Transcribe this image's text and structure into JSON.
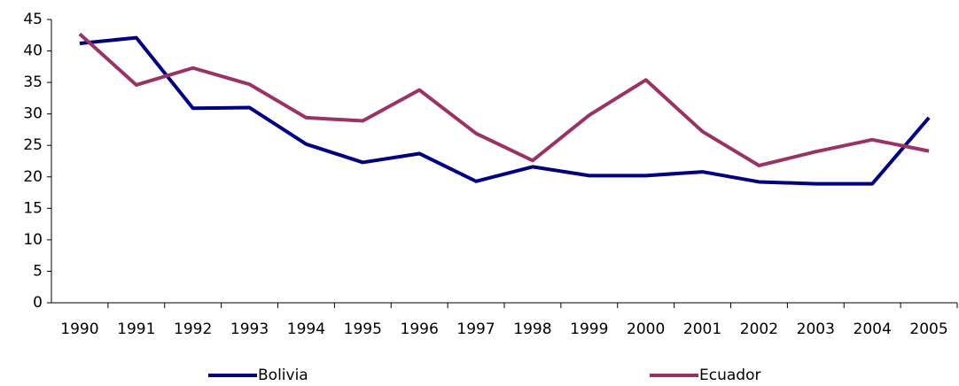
{
  "chart_data": {
    "type": "line",
    "categories": [
      "1990",
      "1991",
      "1992",
      "1993",
      "1994",
      "1995",
      "1996",
      "1997",
      "1998",
      "1999",
      "2000",
      "2001",
      "2002",
      "2003",
      "2004",
      "2005"
    ],
    "series": [
      {
        "name": "Bolivia",
        "color": "#000080",
        "values": [
          41.2,
          42.1,
          30.9,
          31.0,
          25.2,
          22.3,
          23.7,
          19.3,
          21.6,
          20.2,
          20.2,
          20.8,
          19.2,
          18.9,
          18.9,
          29.4
        ]
      },
      {
        "name": "Ecuador",
        "color": "#993366",
        "values": [
          42.7,
          34.6,
          37.3,
          34.7,
          29.4,
          28.9,
          33.8,
          26.9,
          22.6,
          29.8,
          35.4,
          27.2,
          21.8,
          24.0,
          25.9,
          24.1
        ]
      }
    ],
    "ylim": [
      0,
      45
    ],
    "yticks": [
      0,
      5,
      10,
      15,
      20,
      25,
      30,
      35,
      40,
      45
    ],
    "grid": false,
    "legend": "bottom"
  }
}
